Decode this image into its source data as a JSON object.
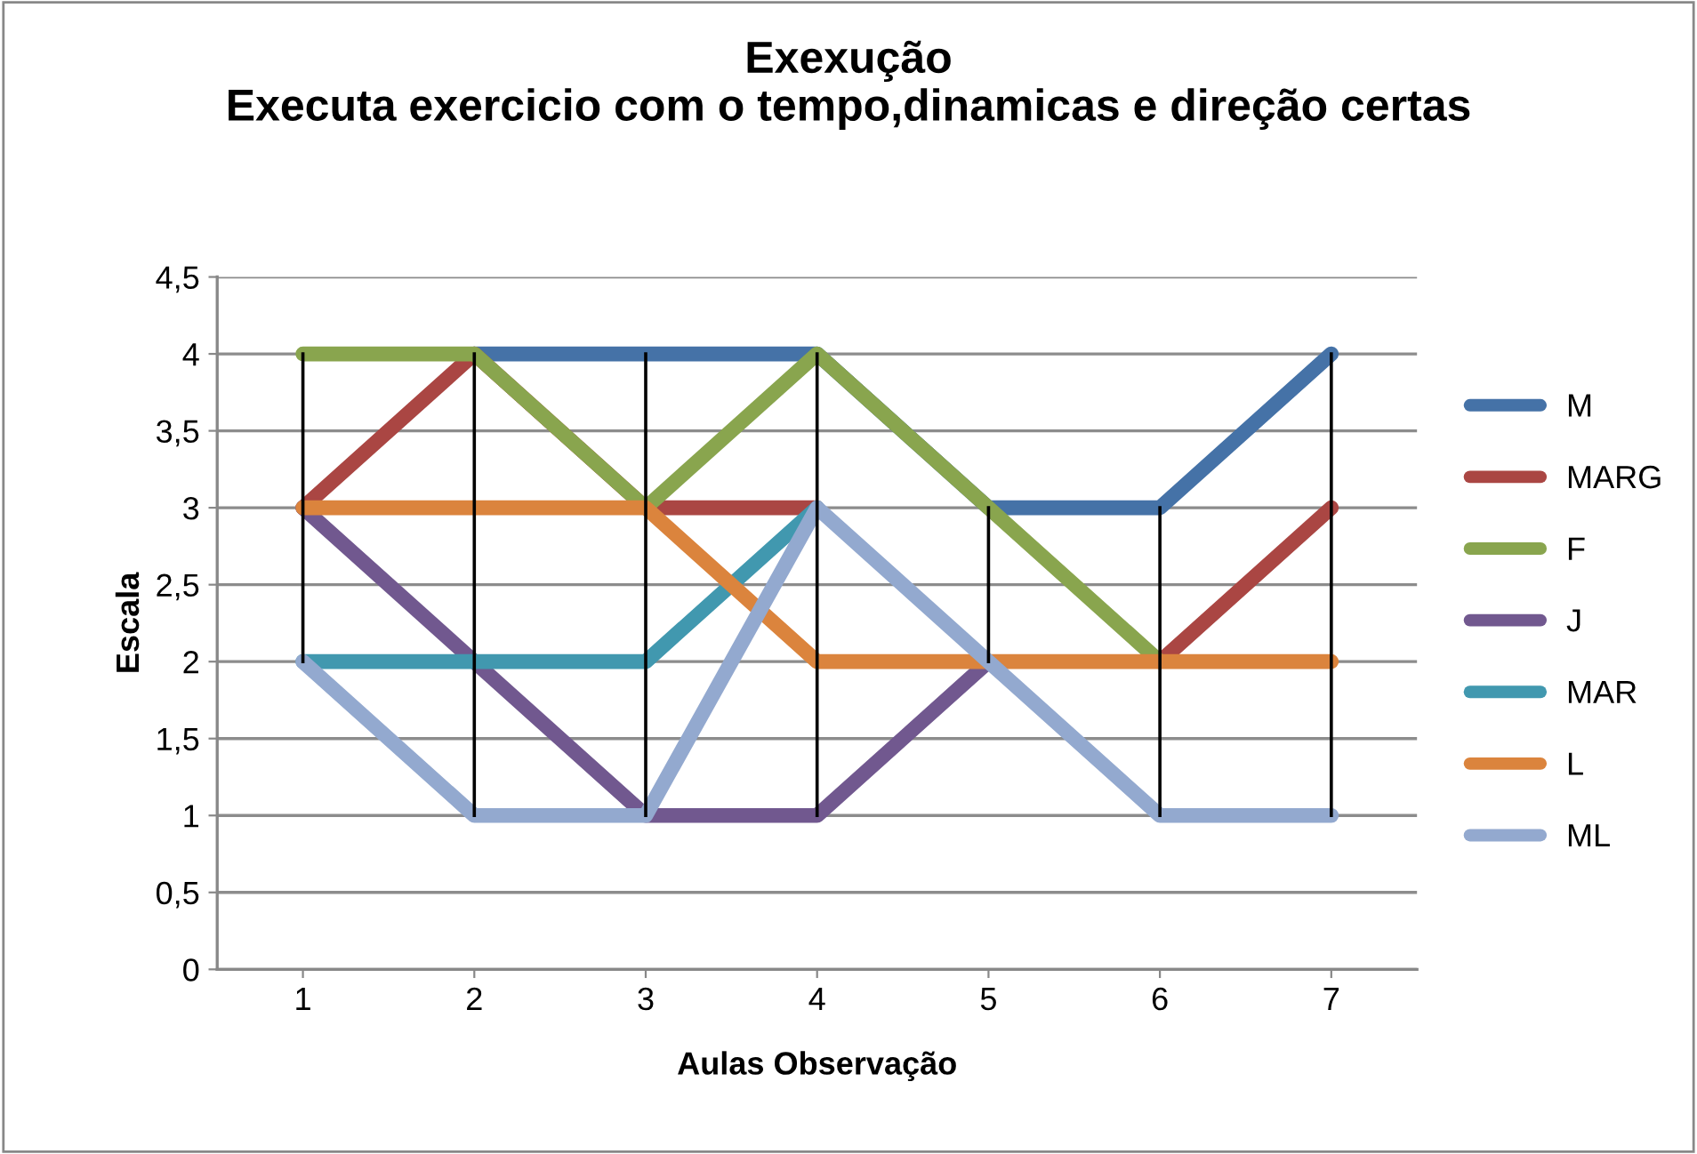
{
  "chart_data": {
    "type": "line",
    "title": "Exexução\nExecuta exercicio com o tempo,dinamicas e direção certas",
    "xlabel": "Aulas Observação",
    "ylabel": "Escala",
    "categories": [
      "1",
      "2",
      "3",
      "4",
      "5",
      "6",
      "7"
    ],
    "series": [
      {
        "name": "M",
        "color": "#4572a7",
        "values": [
          null,
          4,
          4,
          4,
          3,
          3,
          4
        ]
      },
      {
        "name": "MARG",
        "color": "#aa4643",
        "values": [
          3,
          4,
          3,
          3,
          null,
          2,
          3
        ]
      },
      {
        "name": "F",
        "color": "#89a54e",
        "values": [
          4,
          4,
          3,
          4,
          3,
          2,
          null
        ]
      },
      {
        "name": "J",
        "color": "#71588f",
        "values": [
          3,
          2,
          1,
          1,
          2,
          null,
          null
        ]
      },
      {
        "name": "MAR",
        "color": "#4198af",
        "values": [
          2,
          2,
          2,
          3,
          null,
          null,
          null
        ]
      },
      {
        "name": "L",
        "color": "#db843d",
        "values": [
          3,
          3,
          3,
          2,
          2,
          2,
          2
        ]
      },
      {
        "name": "ML",
        "color": "#93a9cf",
        "values": [
          2,
          1,
          1,
          3,
          2,
          1,
          1
        ]
      },
      {
        "color": "#000000",
        "x": [
          "1",
          "1"
        ],
        "values": [
          2,
          4
        ]
      },
      {
        "color": "#000000",
        "x": [
          "2",
          "2"
        ],
        "values": [
          1,
          4
        ]
      },
      {
        "color": "#000000",
        "x": [
          "3",
          "3"
        ],
        "values": [
          1,
          4
        ]
      },
      {
        "color": "#000000",
        "x": [
          "4",
          "4"
        ],
        "values": [
          1,
          4
        ]
      },
      {
        "color": "#000000",
        "x": [
          "5",
          "5"
        ],
        "values": [
          2,
          3
        ]
      },
      {
        "color": "#000000",
        "x": [
          "6",
          "6"
        ],
        "values": [
          1,
          3
        ]
      },
      {
        "color": "#000000",
        "x": [
          "7",
          "7"
        ],
        "values": [
          1,
          4
        ]
      }
    ],
    "ylim": [
      0,
      4.5
    ],
    "yticks": [
      {
        "value": 0,
        "label": "0"
      },
      {
        "value": 0.5,
        "label": "0,5"
      },
      {
        "value": 1,
        "label": "1"
      },
      {
        "value": 1.5,
        "label": "1,5"
      },
      {
        "value": 2,
        "label": "2"
      },
      {
        "value": 2.5,
        "label": "2,5"
      },
      {
        "value": 3,
        "label": "3"
      },
      {
        "value": 3.5,
        "label": "3,5"
      },
      {
        "value": 4,
        "label": "4"
      },
      {
        "value": 4.5,
        "label": "4,5"
      }
    ],
    "grid": "y",
    "legend": "right",
    "marker": "none",
    "line_style": "solid"
  }
}
